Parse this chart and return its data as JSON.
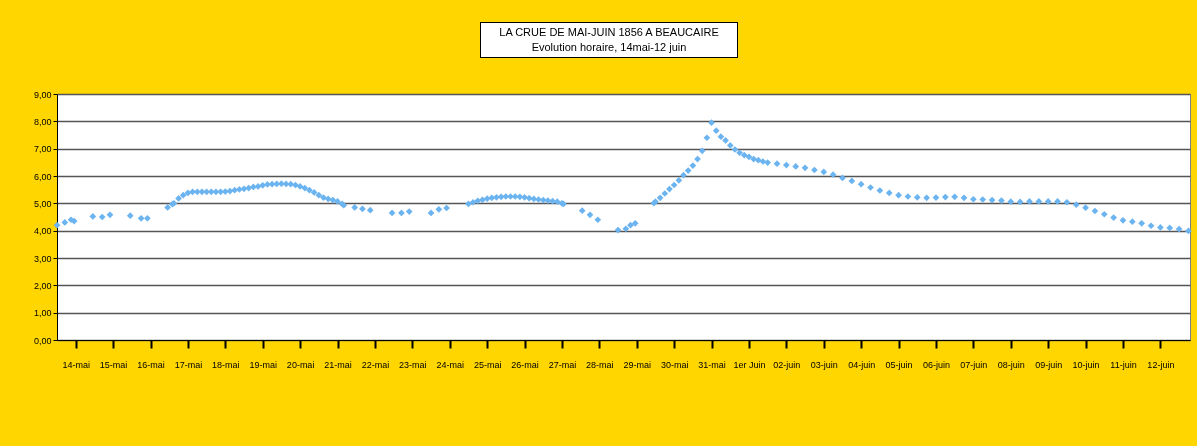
{
  "chart_data": {
    "type": "scatter",
    "title": "LA CRUE DE MAI-JUIN 1856 A BEAUCAIRE",
    "subtitle": "Evolution horaire, 14mai-12 juin",
    "marker": "diamond",
    "grid": "y",
    "xlim": [
      "1856-05-14T00:00",
      "1856-06-13T07:00"
    ],
    "ylim": [
      0,
      9
    ],
    "yticks": [
      {
        "value": 0,
        "label": "0,00"
      },
      {
        "value": 1,
        "label": "1,00"
      },
      {
        "value": 2,
        "label": "2,00"
      },
      {
        "value": 3,
        "label": "3,00"
      },
      {
        "value": 4,
        "label": "4,00"
      },
      {
        "value": 5,
        "label": "5,00"
      },
      {
        "value": 6,
        "label": "6,00"
      },
      {
        "value": 7,
        "label": "7,00"
      },
      {
        "value": 8,
        "label": "8,00"
      },
      {
        "value": 9,
        "label": "9,00"
      }
    ],
    "xticks": [
      {
        "value": "1856-05-14T12:00",
        "label": "14-mai"
      },
      {
        "value": "1856-05-15T12:00",
        "label": "15-mai"
      },
      {
        "value": "1856-05-16T12:00",
        "label": "16-mai"
      },
      {
        "value": "1856-05-17T12:00",
        "label": "17-mai"
      },
      {
        "value": "1856-05-18T12:00",
        "label": "18-mai"
      },
      {
        "value": "1856-05-19T12:00",
        "label": "19-mai"
      },
      {
        "value": "1856-05-20T12:00",
        "label": "20-mai"
      },
      {
        "value": "1856-05-21T12:00",
        "label": "21-mai"
      },
      {
        "value": "1856-05-22T12:00",
        "label": "22-mai"
      },
      {
        "value": "1856-05-23T12:00",
        "label": "23-mai"
      },
      {
        "value": "1856-05-24T12:00",
        "label": "24-mai"
      },
      {
        "value": "1856-05-25T12:00",
        "label": "25-mai"
      },
      {
        "value": "1856-05-26T12:00",
        "label": "26-mai"
      },
      {
        "value": "1856-05-27T12:00",
        "label": "27-mai"
      },
      {
        "value": "1856-05-28T12:00",
        "label": "28-mai"
      },
      {
        "value": "1856-05-29T12:00",
        "label": "29-mai"
      },
      {
        "value": "1856-05-30T12:00",
        "label": "30-mai"
      },
      {
        "value": "1856-05-31T12:00",
        "label": "31-mai"
      },
      {
        "value": "1856-06-01T12:00",
        "label": "1er Juin"
      },
      {
        "value": "1856-06-02T12:00",
        "label": "02-juin"
      },
      {
        "value": "1856-06-03T12:00",
        "label": "03-juin"
      },
      {
        "value": "1856-06-04T12:00",
        "label": "04-juin"
      },
      {
        "value": "1856-06-05T12:00",
        "label": "05-juin"
      },
      {
        "value": "1856-06-06T12:00",
        "label": "06-juin"
      },
      {
        "value": "1856-06-07T12:00",
        "label": "07-juin"
      },
      {
        "value": "1856-06-08T12:00",
        "label": "08-juin"
      },
      {
        "value": "1856-06-09T12:00",
        "label": "09-juin"
      },
      {
        "value": "1856-06-10T12:00",
        "label": "10-juin"
      },
      {
        "value": "1856-06-11T12:00",
        "label": "11-juin"
      },
      {
        "value": "1856-06-12T12:00",
        "label": "12-juin"
      }
    ],
    "series": [
      {
        "color": "#6cb4f0",
        "x": [
          "1856-05-14T00:00",
          "1856-05-14T05:00",
          "1856-05-14T09:00",
          "1856-05-14T11:00",
          "1856-05-14T23:00",
          "1856-05-15T05:00",
          "1856-05-15T10:00",
          "1856-05-15T23:00",
          "1856-05-16T06:00",
          "1856-05-16T10:00",
          "1856-05-16T23:00",
          "1856-05-17T02:00",
          "1856-05-17T03:00",
          "1856-05-17T06:00",
          "1856-05-17T09:00",
          "1856-05-17T12:00",
          "1856-05-17T15:00",
          "1856-05-17T18:00",
          "1856-05-17T21:00",
          "1856-05-18T00:00",
          "1856-05-18T03:00",
          "1856-05-18T06:00",
          "1856-05-18T09:00",
          "1856-05-18T12:00",
          "1856-05-18T15:00",
          "1856-05-18T18:00",
          "1856-05-18T21:00",
          "1856-05-19T00:00",
          "1856-05-19T03:00",
          "1856-05-19T06:00",
          "1856-05-19T09:00",
          "1856-05-19T12:00",
          "1856-05-19T15:00",
          "1856-05-19T18:00",
          "1856-05-19T21:00",
          "1856-05-20T00:00",
          "1856-05-20T03:00",
          "1856-05-20T06:00",
          "1856-05-20T09:00",
          "1856-05-20T12:00",
          "1856-05-20T15:00",
          "1856-05-20T18:00",
          "1856-05-20T21:00",
          "1856-05-21T00:00",
          "1856-05-21T03:00",
          "1856-05-21T06:00",
          "1856-05-21T09:00",
          "1856-05-21T12:00",
          "1856-05-21T15:00",
          "1856-05-21T16:00",
          "1856-05-21T23:00",
          "1856-05-22T04:00",
          "1856-05-22T09:00",
          "1856-05-22T23:00",
          "1856-05-23T05:00",
          "1856-05-23T10:00",
          "1856-05-24T00:00",
          "1856-05-24T05:00",
          "1856-05-24T10:00",
          "1856-05-25T00:00",
          "1856-05-25T03:00",
          "1856-05-25T06:00",
          "1856-05-25T09:00",
          "1856-05-25T12:00",
          "1856-05-25T15:00",
          "1856-05-25T18:00",
          "1856-05-25T21:00",
          "1856-05-26T00:00",
          "1856-05-26T03:00",
          "1856-05-26T06:00",
          "1856-05-26T09:00",
          "1856-05-26T12:00",
          "1856-05-26T15:00",
          "1856-05-26T18:00",
          "1856-05-26T21:00",
          "1856-05-27T00:00",
          "1856-05-27T03:00",
          "1856-05-27T06:00",
          "1856-05-27T09:00",
          "1856-05-27T12:00",
          "1856-05-27T13:00",
          "1856-05-28T01:00",
          "1856-05-28T06:00",
          "1856-05-28T11:00",
          "1856-05-29T00:00",
          "1856-05-29T05:00",
          "1856-05-29T08:00",
          "1856-05-29T11:00",
          "1856-05-29T23:00",
          "1856-05-30T00:00",
          "1856-05-30T03:00",
          "1856-05-30T06:00",
          "1856-05-30T09:00",
          "1856-05-30T12:00",
          "1856-05-30T15:00",
          "1856-05-30T18:00",
          "1856-05-30T21:00",
          "1856-05-31T00:00",
          "1856-05-31T03:00",
          "1856-05-31T06:00",
          "1856-05-31T09:00",
          "1856-05-31T12:00",
          "1856-05-31T15:00",
          "1856-05-31T18:00",
          "1856-05-31T21:00",
          "1856-06-01T00:00",
          "1856-06-01T03:00",
          "1856-06-01T06:00",
          "1856-06-01T09:00",
          "1856-06-01T12:00",
          "1856-06-01T15:00",
          "1856-06-01T18:00",
          "1856-06-01T21:00",
          "1856-06-02T00:00",
          "1856-06-02T06:00",
          "1856-06-02T12:00",
          "1856-06-02T18:00",
          "1856-06-03T00:00",
          "1856-06-03T06:00",
          "1856-06-03T12:00",
          "1856-06-03T18:00",
          "1856-06-04T00:00",
          "1856-06-04T06:00",
          "1856-06-04T12:00",
          "1856-06-04T18:00",
          "1856-06-05T00:00",
          "1856-06-05T06:00",
          "1856-06-05T12:00",
          "1856-06-05T18:00",
          "1856-06-06T00:00",
          "1856-06-06T06:00",
          "1856-06-06T12:00",
          "1856-06-06T18:00",
          "1856-06-07T00:00",
          "1856-06-07T06:00",
          "1856-06-07T12:00",
          "1856-06-07T18:00",
          "1856-06-08T00:00",
          "1856-06-08T06:00",
          "1856-06-08T12:00",
          "1856-06-08T18:00",
          "1856-06-09T00:00",
          "1856-06-09T06:00",
          "1856-06-09T12:00",
          "1856-06-09T18:00",
          "1856-06-10T00:00",
          "1856-06-10T06:00",
          "1856-06-10T12:00",
          "1856-06-10T18:00",
          "1856-06-11T00:00",
          "1856-06-11T06:00",
          "1856-06-11T12:00",
          "1856-06-11T18:00",
          "1856-06-12T00:00",
          "1856-06-12T06:00",
          "1856-06-12T12:00",
          "1856-06-12T18:00",
          "1856-06-13T00:00",
          "1856-06-13T06:00"
        ],
        "values": [
          4.2,
          4.3,
          4.4,
          4.35,
          4.52,
          4.5,
          4.58,
          4.55,
          4.45,
          4.45,
          4.85,
          4.97,
          5.0,
          5.18,
          5.3,
          5.38,
          5.42,
          5.42,
          5.42,
          5.42,
          5.42,
          5.42,
          5.42,
          5.43,
          5.45,
          5.48,
          5.51,
          5.53,
          5.56,
          5.6,
          5.62,
          5.66,
          5.69,
          5.7,
          5.71,
          5.72,
          5.71,
          5.7,
          5.67,
          5.62,
          5.56,
          5.48,
          5.4,
          5.3,
          5.21,
          5.16,
          5.12,
          5.07,
          4.98,
          4.93,
          4.85,
          4.8,
          4.75,
          4.65,
          4.65,
          4.7,
          4.65,
          4.78,
          4.83,
          4.98,
          5.04,
          5.09,
          5.13,
          5.17,
          5.2,
          5.22,
          5.24,
          5.25,
          5.25,
          5.25,
          5.24,
          5.22,
          5.19,
          5.16,
          5.14,
          5.12,
          5.1,
          5.08,
          5.06,
          5.0,
          4.98,
          4.73,
          4.58,
          4.4,
          4.02,
          4.07,
          4.2,
          4.27,
          5.01,
          5.06,
          5.2,
          5.36,
          5.52,
          5.67,
          5.84,
          6.03,
          6.2,
          6.38,
          6.62,
          6.92,
          7.4,
          7.95,
          7.66,
          7.44,
          7.3,
          7.12,
          6.97,
          6.85,
          6.76,
          6.7,
          6.62,
          6.58,
          6.53,
          6.49,
          6.45,
          6.4,
          6.35,
          6.3,
          6.22,
          6.15,
          6.05,
          5.93,
          5.82,
          5.7,
          5.58,
          5.47,
          5.38,
          5.3,
          5.25,
          5.22,
          5.2,
          5.21,
          5.23,
          5.24,
          5.2,
          5.15,
          5.14,
          5.12,
          5.1,
          5.06,
          5.05,
          5.07,
          5.07,
          5.07,
          5.07,
          5.04,
          4.95,
          4.84,
          4.72,
          4.6,
          4.48,
          4.38,
          4.33,
          4.27,
          4.18,
          4.12,
          4.1,
          4.06,
          3.99
        ]
      }
    ]
  }
}
